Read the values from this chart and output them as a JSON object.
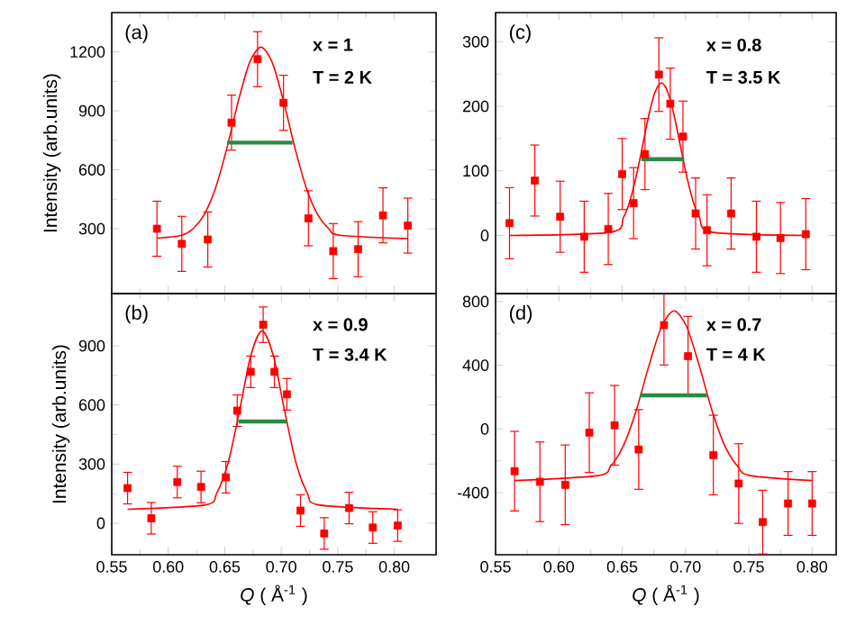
{
  "chart_data": [
    {
      "type": "scatter",
      "ylabel": "Intensity (arb.units)",
      "annotations": [
        "(a)",
        "x = 1",
        "T = 2 K"
      ],
      "xlim": [
        0.55,
        0.837
      ],
      "ylim": [
        -30,
        1400
      ],
      "xticks": [
        0.55,
        0.6,
        0.65,
        0.7,
        0.75,
        0.8
      ],
      "yticks": [
        300,
        600,
        900,
        1200
      ],
      "tick_labels": "y",
      "series": [
        {
          "type": "scatter",
          "marker": "square",
          "color": "#ff0000",
          "x": [
            0.59,
            0.612,
            0.635,
            0.656,
            0.679,
            0.702,
            0.724,
            0.746,
            0.768,
            0.79,
            0.812
          ],
          "values": [
            300,
            223,
            245,
            840,
            1163,
            941,
            353,
            186,
            196,
            368,
            316
          ],
          "errors": [
            140,
            140,
            140,
            140,
            140,
            140,
            140,
            140,
            140,
            140,
            140
          ]
        },
        {
          "type": "line",
          "marker": "none",
          "color": "#ff0000",
          "x": [
            0.59,
            0.612,
            0.622,
            0.632,
            0.642,
            0.652,
            0.662,
            0.672,
            0.682,
            0.692,
            0.702,
            0.712,
            0.722,
            0.732,
            0.742,
            0.752,
            0.812
          ],
          "values": [
            252,
            267,
            300,
            374,
            510,
            713,
            950,
            1146,
            1224,
            1146,
            950,
            713,
            510,
            374,
            300,
            267,
            250
          ]
        },
        {
          "type": "line",
          "color": "#2a8a45",
          "x": [
            0.652,
            0.71
          ],
          "values": [
            738,
            738
          ]
        }
      ]
    },
    {
      "type": "scatter",
      "ylabel": "Intensity (arb.units)",
      "xlabel": "*Q* ( Å$^{-1}$ )",
      "annotations": [
        "(b)",
        "x = 0.9",
        "T = 3.4 K"
      ],
      "xlim": [
        0.55,
        0.837
      ],
      "ylim": [
        -160,
        1165
      ],
      "xticks": [
        0.55,
        {
          "value": 0.6,
          "label": "0.60"
        },
        0.65,
        {
          "value": 0.7,
          "label": "0.70"
        },
        0.75,
        {
          "value": 0.8,
          "label": "0.80"
        }
      ],
      "yticks": [
        0,
        300,
        600,
        900
      ],
      "series": [
        {
          "type": "scatter",
          "marker": "square",
          "color": "#ff0000",
          "x": [
            0.564,
            0.585,
            0.608,
            0.629,
            0.651,
            0.661,
            0.673,
            0.684,
            0.694,
            0.705,
            0.717,
            0.738,
            0.76,
            0.781,
            0.803
          ],
          "values": [
            178,
            25,
            209,
            184,
            233,
            571,
            768,
            1007,
            768,
            654,
            64,
            -52,
            77,
            -22,
            -12
          ],
          "errors": [
            80,
            80,
            80,
            80,
            80,
            80,
            80,
            90,
            80,
            80,
            80,
            80,
            80,
            80,
            80
          ]
        },
        {
          "type": "line",
          "marker": "none",
          "color": "#ff0000",
          "x": [
            0.564,
            0.633,
            0.643,
            0.653,
            0.663,
            0.673,
            0.683,
            0.693,
            0.703,
            0.713,
            0.723,
            0.733,
            0.803
          ],
          "values": [
            71,
            93,
            154,
            307,
            569,
            850,
            976,
            850,
            569,
            307,
            154,
            93,
            71
          ]
        },
        {
          "type": "line",
          "color": "#2a8a45",
          "x": [
            0.662,
            0.705
          ],
          "values": [
            516,
            516
          ]
        }
      ]
    },
    {
      "type": "scatter",
      "annotations": [
        "(c)",
        "x = 0.8",
        "T = 3.5 K"
      ],
      "xlim": [
        0.55,
        0.819
      ],
      "ylim": [
        -90,
        345
      ],
      "xticks": [
        0.55,
        0.6,
        0.65,
        0.7,
        0.75,
        0.8
      ],
      "yticks": [
        0,
        100,
        200,
        300
      ],
      "tick_labels": "y",
      "series": [
        {
          "type": "scatter",
          "marker": "square",
          "color": "#ff0000",
          "x": [
            0.561,
            0.581,
            0.601,
            0.62,
            0.639,
            0.65,
            0.659,
            0.668,
            0.679,
            0.688,
            0.698,
            0.708,
            0.717,
            0.736,
            0.756,
            0.775,
            0.795
          ],
          "values": [
            19,
            85,
            29,
            -2,
            10,
            95,
            50,
            126,
            249,
            204,
            153,
            34,
            8,
            34,
            -2,
            -4,
            2
          ],
          "errors": [
            55,
            55,
            55,
            55,
            55,
            55,
            55,
            55,
            57,
            55,
            55,
            55,
            55,
            55,
            55,
            55,
            55
          ]
        },
        {
          "type": "line",
          "marker": "none",
          "color": "#ff0000",
          "x": [
            0.561,
            0.641,
            0.651,
            0.656,
            0.661,
            0.666,
            0.671,
            0.676,
            0.681,
            0.686,
            0.691,
            0.696,
            0.701,
            0.706,
            0.711,
            0.721,
            0.795
          ],
          "values": [
            0,
            5,
            28,
            53,
            91,
            138,
            186,
            222,
            236,
            222,
            186,
            138,
            91,
            53,
            28,
            5,
            0
          ]
        },
        {
          "type": "line",
          "color": "#2a8a45",
          "x": [
            0.665,
            0.699
          ],
          "values": [
            118,
            118
          ]
        }
      ]
    },
    {
      "type": "scatter",
      "xlabel": "*Q* ( Å$^{-1}$ )",
      "annotations": [
        "(d)",
        "x = 0.7",
        "T = 4 K"
      ],
      "xlim": [
        0.55,
        0.819
      ],
      "ylim": [
        -790,
        850
      ],
      "xticks": [
        0.55,
        {
          "value": 0.6,
          "label": "0.60"
        },
        0.65,
        {
          "value": 0.7,
          "label": "0.70"
        },
        0.75,
        {
          "value": 0.8,
          "label": "0.80"
        }
      ],
      "yticks": [
        -400,
        0,
        400,
        800
      ],
      "series": [
        {
          "type": "scatter",
          "marker": "square",
          "color": "#ff0000",
          "x": [
            0.565,
            0.585,
            0.605,
            0.624,
            0.644,
            0.663,
            0.683,
            0.702,
            0.722,
            0.742,
            0.761,
            0.781,
            0.8
          ],
          "values": [
            -265,
            -332,
            -351,
            -23,
            23,
            -129,
            652,
            457,
            -164,
            -343,
            -585,
            -468,
            -468
          ],
          "errors": [
            250,
            250,
            250,
            250,
            250,
            250,
            250,
            250,
            250,
            250,
            200,
            200,
            200
          ]
        },
        {
          "type": "line",
          "marker": "none",
          "color": "#ff0000",
          "x": [
            0.565,
            0.631,
            0.641,
            0.651,
            0.661,
            0.671,
            0.681,
            0.691,
            0.701,
            0.711,
            0.721,
            0.731,
            0.741,
            0.751,
            0.8
          ],
          "values": [
            -324,
            -293,
            -233,
            -105,
            114,
            394,
            641,
            741,
            641,
            394,
            114,
            -105,
            -233,
            -293,
            -324
          ]
        },
        {
          "type": "line",
          "color": "#2a8a45",
          "x": [
            0.664,
            0.717
          ],
          "values": [
            211,
            211
          ]
        }
      ]
    }
  ]
}
